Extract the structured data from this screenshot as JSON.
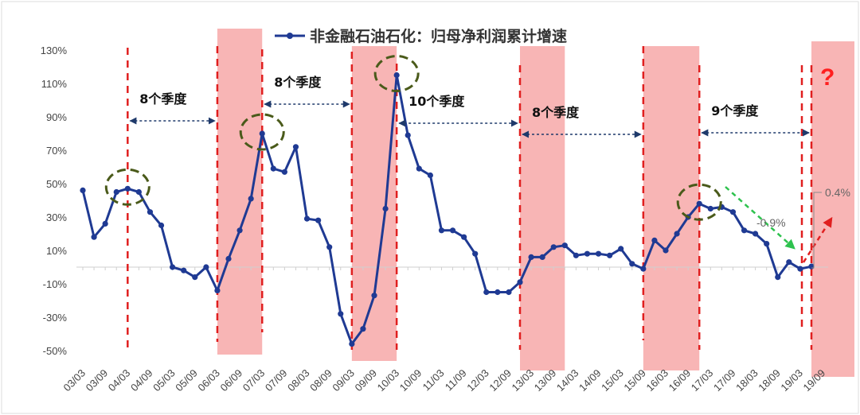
{
  "chart_data": {
    "type": "line",
    "title": "非金融石油石化：归母净利润累计增速",
    "ylim": [
      -50,
      130
    ],
    "yticks": [
      "130%",
      "110%",
      "90%",
      "70%",
      "50%",
      "30%",
      "10%",
      "-10%",
      "-30%",
      "-50%"
    ],
    "x_tick_labels": [
      "03/03",
      "03/09",
      "04/03",
      "04/09",
      "05/03",
      "05/09",
      "06/03",
      "06/09",
      "07/03",
      "07/09",
      "08/03",
      "08/09",
      "09/03",
      "09/09",
      "10/03",
      "10/09",
      "11/03",
      "11/09",
      "12/03",
      "12/09",
      "13/03",
      "13/09",
      "14/03",
      "14/09",
      "15/03",
      "15/09",
      "16/03",
      "16/09",
      "17/03",
      "17/09",
      "18/03",
      "18/09",
      "19/03",
      "19/09"
    ],
    "series": [
      {
        "name": "非金融石油石化：归母净利润累计增速",
        "color": "#1f3a93",
        "values": [
          46,
          18,
          26,
          45,
          47,
          45,
          33,
          25,
          0,
          -2,
          -6,
          0,
          -14,
          5,
          22,
          41,
          80,
          59,
          57,
          72,
          29,
          28,
          12,
          -28,
          -46,
          -37,
          -17,
          35,
          115,
          79,
          59,
          55,
          22,
          22,
          18,
          8,
          -15,
          -15,
          -15,
          -9,
          6,
          6,
          12,
          13,
          7,
          8,
          8,
          7,
          11,
          2,
          -1,
          16,
          10,
          20,
          30,
          38,
          35,
          36,
          33,
          22,
          20,
          14,
          -6,
          3,
          -1,
          0.4
        ]
      }
    ],
    "shaded_periods": [
      [
        12,
        16
      ],
      [
        24,
        28
      ],
      [
        39,
        43
      ],
      [
        50,
        55
      ],
      [
        65,
        69
      ]
    ],
    "divider_lines": [
      4,
      12,
      16,
      24,
      28,
      39,
      50,
      55,
      65
    ],
    "period_labels": [
      "8个季度",
      "8个季度",
      "10个季度",
      "8个季度",
      "9个季度"
    ],
    "circled_points": [
      4,
      16,
      28,
      55
    ],
    "annotations": [
      "-0.9%",
      "0.4%",
      "?"
    ],
    "colors": {
      "line": "#1f3a93",
      "shade": "#f7a8a8",
      "divider": "#e01f1f",
      "arrow": "#1f3a6b",
      "circle": "#4a5a1a",
      "green_arrow": "#2ec24e"
    },
    "grid": false
  }
}
